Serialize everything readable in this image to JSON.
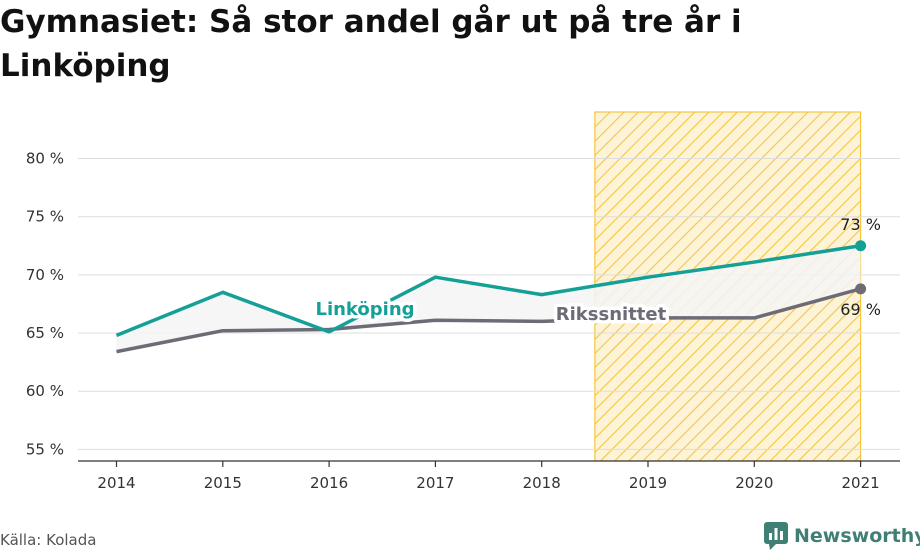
{
  "header": {
    "title": "Gymnasiet: Så stor andel går ut på tre år i Linköping"
  },
  "footer": {
    "source": "Källa: Kolada",
    "brand": "Newsworthy"
  },
  "colors": {
    "linkoping": "#14a096",
    "riks": "#6d6b75",
    "highlight": "#f5c542",
    "grid": "#dddddd"
  },
  "icons": {
    "brand": "newsworthy-logo-icon"
  },
  "chart_data": {
    "type": "line",
    "x": [
      2014,
      2015,
      2016,
      2017,
      2018,
      2019,
      2020,
      2021
    ],
    "ylim": [
      54,
      84
    ],
    "yticks": [
      55,
      60,
      65,
      70,
      75,
      80
    ],
    "ytick_labels": [
      "55 %",
      "60 %",
      "65 %",
      "70 %",
      "75 %",
      "80 %"
    ],
    "xtick_labels": [
      "2014",
      "2015",
      "2016",
      "2017",
      "2018",
      "2019",
      "2020",
      "2021"
    ],
    "grid": true,
    "highlight_range": [
      2018.5,
      2021
    ],
    "series": [
      {
        "name": "Linköping",
        "values": [
          64.8,
          68.5,
          65.1,
          69.8,
          68.3,
          69.8,
          71.1,
          72.5
        ],
        "end_label": "73 %"
      },
      {
        "name": "Rikssnittet",
        "values": [
          63.4,
          65.2,
          65.3,
          66.1,
          66.0,
          66.3,
          66.3,
          68.8
        ],
        "end_label": "69 %"
      }
    ]
  }
}
